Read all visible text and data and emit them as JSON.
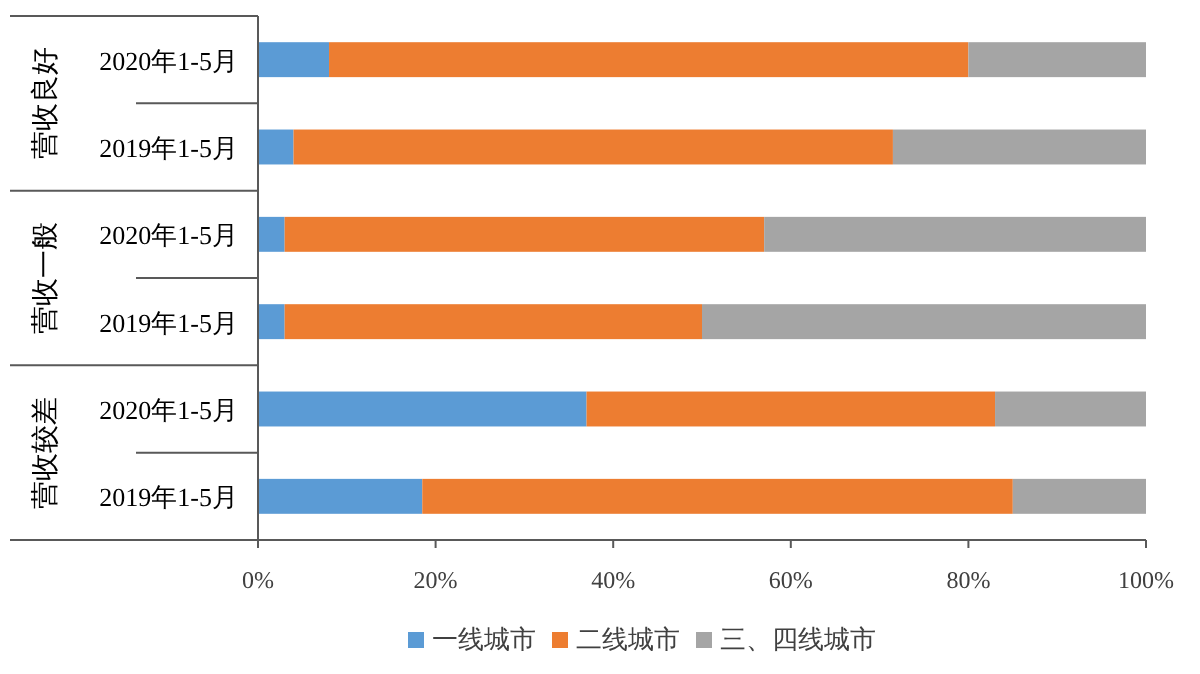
{
  "chart_data": {
    "type": "bar",
    "orientation": "horizontal",
    "stacked": true,
    "categories": [
      "2020年1-5月",
      "2019年1-5月",
      "2020年1-5月",
      "2019年1-5月",
      "2020年1-5月",
      "2019年1-5月"
    ],
    "annotations": [
      "营收良好",
      "营收一般",
      "营收较差"
    ],
    "series": [
      {
        "name": "一线城市",
        "color": "#5b9bd5",
        "values": [
          8,
          4,
          3,
          3,
          37,
          18.5
        ]
      },
      {
        "name": "二线城市",
        "color": "#ed7d31",
        "values": [
          72,
          67.5,
          54,
          47,
          46,
          66.5
        ]
      },
      {
        "name": "三、四线城市",
        "color": "#a5a5a5",
        "values": [
          20,
          28.5,
          43,
          50,
          17,
          15
        ]
      }
    ],
    "xlim": [
      0,
      100
    ],
    "xticks": [
      {
        "value": 0,
        "label": "0%"
      },
      {
        "value": 20,
        "label": "20%"
      },
      {
        "value": 40,
        "label": "40%"
      },
      {
        "value": 60,
        "label": "60%"
      },
      {
        "value": 80,
        "label": "80%"
      },
      {
        "value": 100,
        "label": "100%"
      }
    ],
    "legend": "bottom",
    "grid": false
  }
}
